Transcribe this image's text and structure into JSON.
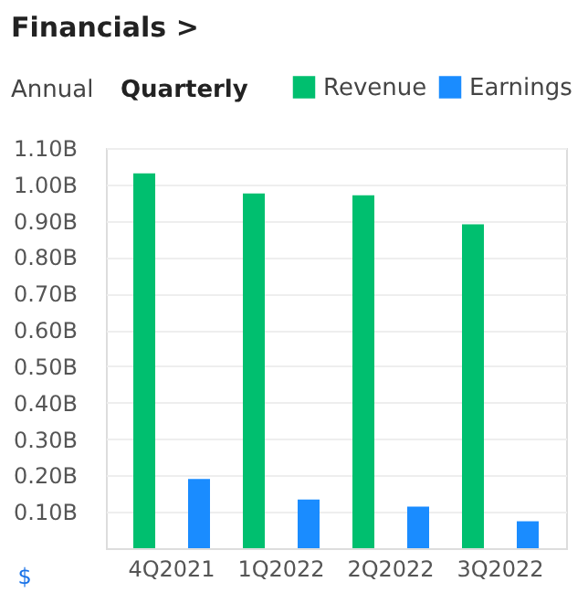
{
  "chart_data": {
    "type": "bar",
    "title": "Financials >",
    "ylabel": "$",
    "annotations": [
      "Annual",
      "Quarterly"
    ],
    "categories": [
      "4Q2021",
      "1Q2022",
      "2Q2022",
      "3Q2022"
    ],
    "series": [
      {
        "name": "Revenue",
        "color": "#00bf6f",
        "values": [
          1.03,
          0.975,
          0.97,
          0.89
        ]
      },
      {
        "name": "Earnings",
        "color": "#1a8cff",
        "values": [
          0.19,
          0.134,
          0.114,
          0.074
        ]
      }
    ],
    "ylim": [
      0,
      1.1
    ],
    "yticks": [
      {
        "value": 0.1,
        "label": "0.10B"
      },
      {
        "value": 0.2,
        "label": "0.20B"
      },
      {
        "value": 0.3,
        "label": "0.30B"
      },
      {
        "value": 0.4,
        "label": "0.40B"
      },
      {
        "value": 0.5,
        "label": "0.50B"
      },
      {
        "value": 0.6,
        "label": "0.60B"
      },
      {
        "value": 0.7,
        "label": "0.70B"
      },
      {
        "value": 0.8,
        "label": "0.80B"
      },
      {
        "value": 0.9,
        "label": "0.90B"
      },
      {
        "value": 1.0,
        "label": "1.00B"
      },
      {
        "value": 1.1,
        "label": "1.10B"
      }
    ],
    "grid": "y",
    "legend": "top right"
  }
}
